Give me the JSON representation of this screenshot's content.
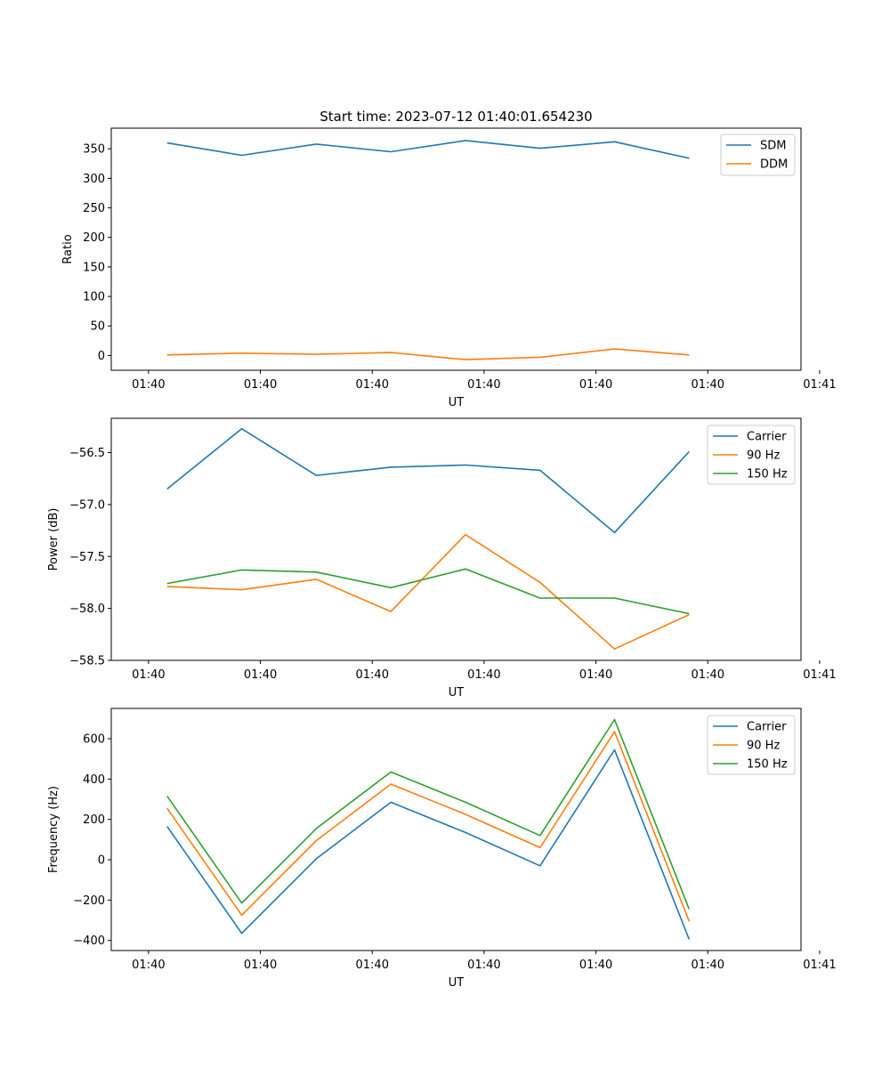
{
  "figure_title": "Start time: 2023-07-12 01:40:01.654230",
  "colors": {
    "blue": "#1f77b4",
    "orange": "#ff7f0e",
    "green": "#2ca02c"
  },
  "chart_data": [
    {
      "type": "line",
      "title": "Start time: 2023-07-12 01:40:01.654230",
      "xlabel": "UT",
      "ylabel": "Ratio",
      "x": [
        1,
        2,
        3,
        4,
        5,
        6,
        7,
        8
      ],
      "xlim": [
        0.25,
        9.5
      ],
      "xticks": [
        0.75,
        2.25,
        3.75,
        5.25,
        6.75,
        8.25,
        9.75
      ],
      "xtick_labels": [
        "01:40",
        "01:40",
        "01:40",
        "01:40",
        "01:40",
        "01:40",
        "01:41"
      ],
      "ylim": [
        -25,
        385
      ],
      "yticks": [
        0,
        50,
        100,
        150,
        200,
        250,
        300,
        350
      ],
      "ytick_labels": [
        "0",
        "50",
        "100",
        "150",
        "200",
        "250",
        "300",
        "350"
      ],
      "legend_position": "top-right",
      "series": [
        {
          "name": "SDM",
          "color": "#1f77b4",
          "values": [
            360,
            339,
            358,
            345,
            364,
            351,
            362,
            334
          ]
        },
        {
          "name": "DDM",
          "color": "#ff7f0e",
          "values": [
            1,
            4,
            2,
            5,
            -7,
            -3,
            11,
            1
          ]
        }
      ]
    },
    {
      "type": "line",
      "title": "",
      "xlabel": "UT",
      "ylabel": "Power (dB)",
      "x": [
        1,
        2,
        3,
        4,
        5,
        6,
        7,
        8
      ],
      "xlim": [
        0.25,
        9.5
      ],
      "xticks": [
        0.75,
        2.25,
        3.75,
        5.25,
        6.75,
        8.25,
        9.75
      ],
      "xtick_labels": [
        "01:40",
        "01:40",
        "01:40",
        "01:40",
        "01:40",
        "01:40",
        "01:41"
      ],
      "ylim": [
        -58.5,
        -56.17
      ],
      "yticks": [
        -58.5,
        -58.0,
        -57.5,
        -57.0,
        -56.5
      ],
      "ytick_labels": [
        "−58.5",
        "−58.0",
        "−57.5",
        "−57.0",
        "−56.5"
      ],
      "legend_position": "top-right",
      "series": [
        {
          "name": "Carrier",
          "color": "#1f77b4",
          "values": [
            -56.85,
            -56.27,
            -56.72,
            -56.64,
            -56.62,
            -56.67,
            -57.27,
            -56.49
          ]
        },
        {
          "name": "90 Hz",
          "color": "#ff7f0e",
          "values": [
            -57.79,
            -57.82,
            -57.72,
            -58.03,
            -57.29,
            -57.75,
            -58.39,
            -58.06
          ]
        },
        {
          "name": "150 Hz",
          "color": "#2ca02c",
          "values": [
            -57.76,
            -57.63,
            -57.65,
            -57.8,
            -57.62,
            -57.9,
            -57.9,
            -58.05
          ]
        }
      ]
    },
    {
      "type": "line",
      "title": "",
      "xlabel": "UT",
      "ylabel": "Frequency (Hz)",
      "x": [
        1,
        2,
        3,
        4,
        5,
        6,
        7,
        8
      ],
      "xlim": [
        0.25,
        9.5
      ],
      "xticks": [
        0.75,
        2.25,
        3.75,
        5.25,
        6.75,
        8.25,
        9.75
      ],
      "xtick_labels": [
        "01:40",
        "01:40",
        "01:40",
        "01:40",
        "01:40",
        "01:40",
        "01:41"
      ],
      "ylim": [
        -450,
        750
      ],
      "yticks": [
        -400,
        -200,
        0,
        200,
        400,
        600
      ],
      "ytick_labels": [
        "−400",
        "−200",
        "0",
        "200",
        "400",
        "600"
      ],
      "legend_position": "top-right",
      "series": [
        {
          "name": "Carrier",
          "color": "#1f77b4",
          "values": [
            165,
            -365,
            5,
            285,
            135,
            -30,
            545,
            -395
          ]
        },
        {
          "name": "90 Hz",
          "color": "#ff7f0e",
          "values": [
            255,
            -275,
            95,
            375,
            225,
            60,
            635,
            -305
          ]
        },
        {
          "name": "150 Hz",
          "color": "#2ca02c",
          "values": [
            315,
            -215,
            155,
            435,
            285,
            120,
            695,
            -245
          ]
        }
      ]
    }
  ]
}
